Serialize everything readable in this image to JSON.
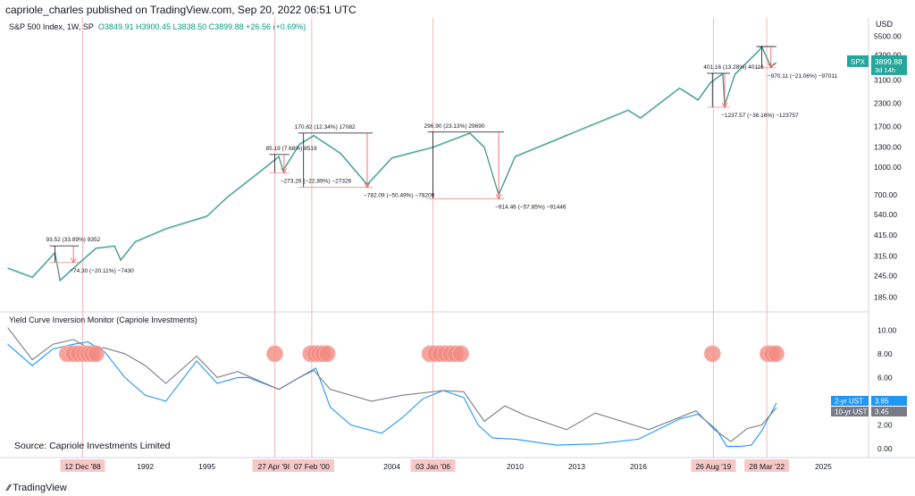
{
  "header": {
    "publisher": "capriole_charles published on TradingView.com, Sep 20, 2022 06:51 UTC",
    "symbol": "S&P 500 Index, 1W, SP",
    "ohlc": {
      "open": "O3849.91",
      "high": "H3900.45",
      "low": "L3838.50",
      "close": "C3899.88",
      "change": "+26.56 (+0.69%)"
    },
    "currency": "USD"
  },
  "price_tag": {
    "symbol": "SPX",
    "value": "3899.88",
    "countdown": "3d 14h",
    "color": "#26a69a"
  },
  "lower_panel": {
    "title": "Yield Curve Inversion Monitor (Capriole Investments)"
  },
  "source_note": "Source: Capriole Investments Limited",
  "brand": "TradingView",
  "chart_data": [
    {
      "type": "line",
      "title": "S&P 500 Index, 1W, SP",
      "scale": "log",
      "x": [
        1985.3,
        1986.5,
        1987.6,
        1987.85,
        1988.5,
        1989.6,
        1990.5,
        1990.8,
        1991.5,
        1993,
        1995,
        1996,
        1997.6,
        1998.5,
        1998.7,
        1999.5,
        2000.2,
        2001.5,
        2002.8,
        2004,
        2006,
        2007.8,
        2008.5,
        2009.2,
        2010,
        2013,
        2015.5,
        2016.1,
        2018,
        2018.9,
        2019.5,
        2020.1,
        2020.2,
        2020.7,
        2021.9,
        2022.0,
        2022.45,
        2022.72
      ],
      "y": [
        270,
        240,
        330,
        230,
        270,
        350,
        360,
        300,
        380,
        450,
        530,
        680,
        950,
        1150,
        960,
        1350,
        1510,
        1200,
        800,
        1130,
        1300,
        1560,
        1300,
        700,
        1150,
        1600,
        2100,
        1900,
        2800,
        2400,
        3000,
        3380,
        2240,
        3350,
        4600,
        4800,
        3700,
        3900
      ],
      "yticks": [
        "5500.00",
        "4300.00",
        "3100.00",
        "2300.00",
        "1700.00",
        "1300.00",
        "1000.00",
        "700.00",
        "540.00",
        "415.00",
        "315.00",
        "245.00",
        "185.00"
      ],
      "ytick_values": [
        5500,
        4300,
        3100,
        2300,
        1700,
        1300,
        1000,
        700,
        540,
        415,
        315,
        245,
        185
      ],
      "ylim": [
        160,
        6200
      ],
      "measurements": [
        {
          "up": "93.52 (33.89%) 9352",
          "down": "−74.30 (−20.11%) −7430",
          "x0": 1987.6,
          "x1": 1988.5,
          "top": 360,
          "bottom": 290
        },
        {
          "up": "85.19 (7.68%) 8519",
          "down": "−273.26 (−22.89%) −27326",
          "x0": 1998.3,
          "x1": 1998.75,
          "top": 1180,
          "bottom": 930
        },
        {
          "up": "170.82 (12.34%) 17082",
          "down": "−782.09 (−50.49%) −78209",
          "x0": 1999.7,
          "x1": 2002.8,
          "top": 1560,
          "bottom": 770
        },
        {
          "up": "296.90 (23.13%) 29690",
          "down": "−914.46 (−57.85%) −91446",
          "x0": 2006.0,
          "x1": 2009.2,
          "top": 1580,
          "bottom": 665
        },
        {
          "up": "401.16 (13.28%) 40116",
          "down": "−1237.57 (−36.16%) −123757",
          "x0": 2019.6,
          "x1": 2020.2,
          "top": 3390,
          "bottom": 2180
        },
        {
          "up": "",
          "down": "−970.11 (−21.06%) −97011",
          "x0": 2022.0,
          "x1": 2022.45,
          "top": 4800,
          "bottom": 3640
        }
      ]
    },
    {
      "type": "line",
      "title": "Yield Curve Inversion Monitor (Capriole Investments)",
      "x_ticks": [
        "12 Dec '88",
        "1992",
        "1995",
        "27 Apr '98",
        "07 Feb '00",
        "2004",
        "03 Jan '06",
        "2010",
        "2013",
        "2016",
        "26 Aug '19",
        "28 Mar '22",
        "2025"
      ],
      "x_tick_values": [
        1988.95,
        1992,
        1995,
        1998.3,
        2000.1,
        2004,
        2006.0,
        2010,
        2013,
        2016,
        2019.65,
        2022.25,
        2025
      ],
      "highlight_labels": [
        "12 Dec '88",
        "27 Apr '98",
        "07 Feb '00",
        "03 Jan '06",
        "26 Aug '19",
        "28 Mar '22"
      ],
      "xlim": [
        1985.1,
        2027.2
      ],
      "yticks": [
        "10.00",
        "8.00",
        "6.00",
        "4.00",
        "2.00",
        "0.00"
      ],
      "ytick_values": [
        10,
        8,
        6,
        4,
        2,
        0
      ],
      "ylim": [
        -0.6,
        11.0
      ],
      "series": [
        {
          "name": "2-yr UST",
          "last": "3.85",
          "color": "#2196f3",
          "x": [
            1985.3,
            1986.5,
            1987.5,
            1988.5,
            1989.2,
            1990,
            1991,
            1992,
            1993,
            1994.5,
            1995.5,
            1996.5,
            1997,
            1998.5,
            1999,
            2000.3,
            2001,
            2002,
            2003.5,
            2004.5,
            2005.5,
            2006.5,
            2007.5,
            2008.2,
            2008.9,
            2010,
            2012,
            2014,
            2016,
            2018,
            2018.9,
            2019.8,
            2020.3,
            2021,
            2021.5,
            2022,
            2022.72
          ],
          "y": [
            8.8,
            7.0,
            8.4,
            8.8,
            9.0,
            8.2,
            6.0,
            4.5,
            4.0,
            7.4,
            5.5,
            6.0,
            6.0,
            5.0,
            5.5,
            6.8,
            3.5,
            2.0,
            1.3,
            2.6,
            4.2,
            4.9,
            4.3,
            2.0,
            0.9,
            0.8,
            0.3,
            0.4,
            0.8,
            2.5,
            2.9,
            1.6,
            0.2,
            0.2,
            0.3,
            1.5,
            3.85
          ]
        },
        {
          "name": "10-yr UST",
          "last": "3.45",
          "color": "#787b86",
          "x": [
            1985.3,
            1986.5,
            1987.5,
            1988.5,
            1989.2,
            1990,
            1991,
            1992,
            1993,
            1994.5,
            1995.5,
            1996.5,
            1998.5,
            1999.5,
            2000.2,
            2001,
            2003,
            2004.5,
            2006.5,
            2007.5,
            2008.5,
            2009.5,
            2010.5,
            2012.5,
            2013.9,
            2016.5,
            2018.8,
            2019.7,
            2020.5,
            2021.3,
            2022,
            2022.72
          ],
          "y": [
            10.2,
            7.5,
            8.8,
            9.2,
            8.5,
            8.5,
            8.0,
            7.0,
            5.5,
            7.8,
            6.0,
            6.5,
            5.0,
            6.0,
            6.6,
            5.0,
            4.0,
            4.5,
            4.9,
            4.8,
            2.3,
            3.6,
            2.8,
            1.6,
            3.0,
            1.6,
            3.2,
            1.6,
            0.6,
            1.7,
            2.0,
            3.45
          ]
        }
      ],
      "inversion_dates": [
        1988.2,
        1988.5,
        1988.75,
        1989.0,
        1989.2,
        1989.4,
        1989.6,
        1998.3,
        2000.05,
        2000.25,
        2000.45,
        2000.65,
        2000.85,
        2005.85,
        2006.1,
        2006.35,
        2006.6,
        2006.85,
        2007.1,
        2007.35,
        2019.6,
        2022.3,
        2022.5,
        2022.7
      ]
    }
  ]
}
